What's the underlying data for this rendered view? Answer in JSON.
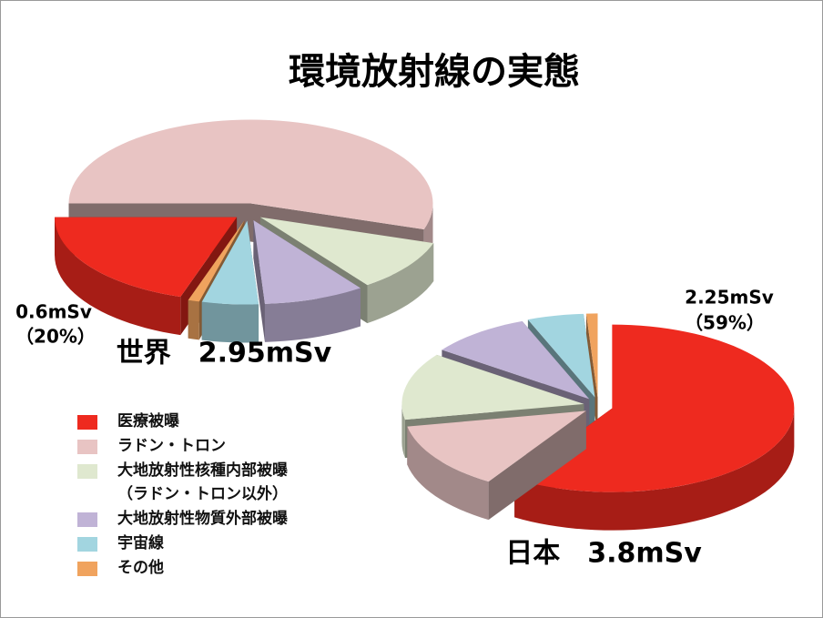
{
  "title": "環境放射線の実態",
  "legend": {
    "categories": [
      "医療被曝",
      "ラドン・トロン",
      "大地放射性核種内部被曝\n（ラドン・トロン以外）",
      "大地放射性物質外部被曝",
      "宇宙線",
      "その他"
    ],
    "colors": [
      "#ee2a1f",
      "#e8c4c3",
      "#dfe8cf",
      "#c0b3d6",
      "#a2d5e0",
      "#f0a35e"
    ]
  },
  "chart_data": [
    {
      "type": "pie",
      "label": "世界　2.95mSv",
      "values": [
        20,
        55,
        10,
        9,
        5,
        1
      ],
      "annotation": {
        "amount": "0.6mSv",
        "share": "（20%）",
        "slice": 0
      }
    },
    {
      "type": "pie",
      "label": "日本　3.8mSv",
      "values": [
        59,
        13,
        13,
        9,
        5,
        1
      ],
      "annotation": {
        "amount": "2.25mSv",
        "share": "（59%）",
        "slice": 0
      }
    }
  ]
}
